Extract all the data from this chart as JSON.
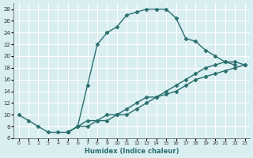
{
  "xlabel": "Humidex (Indice chaleur)",
  "bg_color": "#d8eef0",
  "grid_color": "#ffffff",
  "line_color": "#2a6e6e",
  "xlim_min": -0.5,
  "xlim_max": 23.5,
  "ylim_min": 6,
  "ylim_max": 29,
  "xticks": [
    0,
    1,
    2,
    3,
    4,
    5,
    6,
    7,
    8,
    9,
    10,
    11,
    12,
    13,
    14,
    15,
    16,
    17,
    18,
    19,
    20,
    21,
    22,
    23
  ],
  "yticks": [
    6,
    8,
    10,
    12,
    14,
    16,
    18,
    20,
    22,
    24,
    26,
    28
  ],
  "series1_x": [
    0,
    1,
    2,
    3,
    4,
    5,
    6,
    7,
    8,
    9,
    10,
    11,
    12,
    13,
    14,
    15,
    16,
    17,
    18,
    19,
    20,
    21,
    22
  ],
  "series1_y": [
    10,
    9,
    8,
    7,
    7,
    7,
    8,
    15,
    22,
    24,
    25,
    27,
    27.5,
    28,
    28,
    28,
    26.5,
    23,
    22.5,
    21,
    20,
    19,
    18.5
  ],
  "series2_x": [
    5,
    6,
    7,
    8,
    9,
    10,
    11,
    12,
    13,
    14,
    15,
    16,
    17,
    18,
    19,
    20,
    21,
    22,
    23
  ],
  "series2_y": [
    7,
    8,
    9,
    9,
    10,
    10,
    11,
    12,
    13,
    13,
    14,
    15,
    16,
    17,
    18,
    18.5,
    19,
    19,
    18.5
  ],
  "series3_x": [
    5,
    6,
    7,
    8,
    9,
    10,
    11,
    12,
    13,
    14,
    15,
    16,
    17,
    18,
    19,
    20,
    21,
    22,
    23
  ],
  "series3_y": [
    7,
    8,
    8,
    9,
    9,
    10,
    10,
    11,
    12,
    13,
    13.5,
    14,
    15,
    16,
    16.5,
    17,
    17.5,
    18,
    18.5
  ]
}
